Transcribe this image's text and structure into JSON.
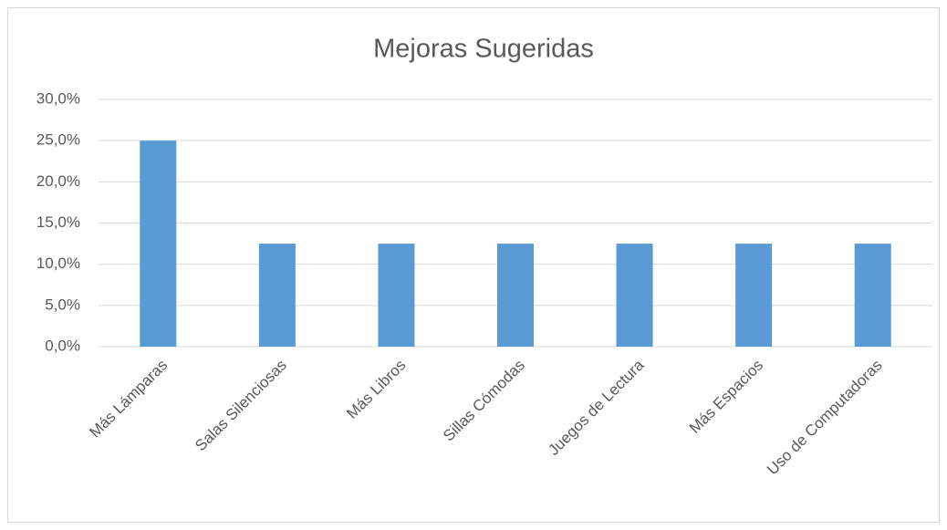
{
  "chart_data": {
    "type": "bar",
    "title": "Mejoras Sugeridas",
    "categories": [
      "Más Lámparas",
      "Salas Silenciosas",
      "Más Libros",
      "Sillas Cómodas",
      "Juegos de Lectura",
      "Más Espacios",
      "Uso de Computadoras"
    ],
    "values": [
      25,
      12.5,
      12.5,
      12.5,
      12.5,
      12.5,
      12.5
    ],
    "color": "#5b9bd5",
    "ylim": [
      0,
      30
    ],
    "yticks": [
      {
        "value": 0,
        "label": "0,0%"
      },
      {
        "value": 5,
        "label": "5,0%"
      },
      {
        "value": 10,
        "label": "10,0%"
      },
      {
        "value": 15,
        "label": "15,0%"
      },
      {
        "value": 20,
        "label": "20,0%"
      },
      {
        "value": 25,
        "label": "25,0%"
      },
      {
        "value": 30,
        "label": "30,0%"
      }
    ],
    "grid": true
  }
}
